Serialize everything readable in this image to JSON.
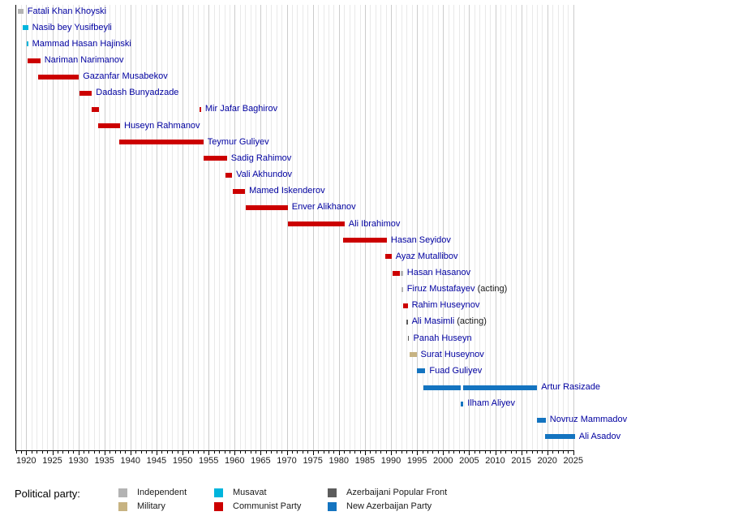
{
  "legend": {
    "title": "Political party:",
    "items": [
      {
        "label": "Independent",
        "color": "#b3b3b3"
      },
      {
        "label": "Military",
        "color": "#c7b382"
      },
      {
        "label": "Musavat",
        "color": "#00b5dd"
      },
      {
        "label": "Communist Party",
        "color": "#cc0000"
      },
      {
        "label": "Azerbaijani Popular Front",
        "color": "#5c5c5c"
      },
      {
        "label": "New Azerbaijan Party",
        "color": "#1474c0"
      }
    ]
  },
  "chart_data": {
    "type": "gantt",
    "x_range": [
      1918,
      2025.6
    ],
    "x_ticks": [
      "1920",
      "1925",
      "1930",
      "1935",
      "1940",
      "1945",
      "1950",
      "1955",
      "1960",
      "1965",
      "1970",
      "1975",
      "1980",
      "1985",
      "1990",
      "1995",
      "2000",
      "2005",
      "2010",
      "2015",
      "2020",
      "2025"
    ],
    "grid": "vertical-yearly",
    "legend_position": "bottom",
    "people": [
      {
        "name": "Fatali Khan Khoyski",
        "segments": [
          {
            "from": 1918.4,
            "to": 1919.45,
            "party": "Independent"
          }
        ]
      },
      {
        "name": "Nasib bey Yusifbeyli",
        "segments": [
          {
            "from": 1919.3,
            "to": 1920.35,
            "party": "Musavat"
          }
        ]
      },
      {
        "name": "Mammad Hasan Hajinski",
        "segments": [
          {
            "from": 1920.1,
            "to": 1920.35,
            "party": "Musavat"
          }
        ]
      },
      {
        "name": "Nariman Narimanov",
        "segments": [
          {
            "from": 1920.3,
            "to": 1922.7,
            "party": "Communist Party"
          }
        ]
      },
      {
        "name": "Gazanfar Musabekov",
        "segments": [
          {
            "from": 1922.3,
            "to": 1930.1,
            "party": "Communist Party"
          }
        ]
      },
      {
        "name": "Dadash Bunyadzade",
        "segments": [
          {
            "from": 1930.2,
            "to": 1932.6,
            "party": "Communist Party"
          }
        ]
      },
      {
        "name": "Mir Jafar Baghirov",
        "segments": [
          {
            "from": 1932.6,
            "to": 1934.0,
            "party": "Communist Party"
          },
          {
            "from": 1953.25,
            "to": 1953.55,
            "party": "Communist Party"
          }
        ]
      },
      {
        "name": "Huseyn Rahmanov",
        "segments": [
          {
            "from": 1933.8,
            "to": 1938.0,
            "party": "Communist Party"
          }
        ]
      },
      {
        "name": "Teymur Guliyev",
        "segments": [
          {
            "from": 1937.8,
            "to": 1954.0,
            "party": "Communist Party"
          }
        ]
      },
      {
        "name": "Sadig Rahimov",
        "segments": [
          {
            "from": 1954.0,
            "to": 1958.5,
            "party": "Communist Party"
          }
        ]
      },
      {
        "name": "Vali Akhundov",
        "segments": [
          {
            "from": 1958.2,
            "to": 1959.5,
            "party": "Communist Party"
          }
        ]
      },
      {
        "name": "Mamed Iskenderov",
        "segments": [
          {
            "from": 1959.6,
            "to": 1962.0,
            "party": "Communist Party"
          }
        ]
      },
      {
        "name": "Enver Alikhanov",
        "segments": [
          {
            "from": 1962.1,
            "to": 1970.2,
            "party": "Communist Party"
          }
        ]
      },
      {
        "name": "Ali Ibrahimov",
        "segments": [
          {
            "from": 1970.2,
            "to": 1981.1,
            "party": "Communist Party"
          }
        ]
      },
      {
        "name": "Hasan Seyidov",
        "segments": [
          {
            "from": 1980.8,
            "to": 1989.2,
            "party": "Communist Party"
          }
        ]
      },
      {
        "name": "Ayaz Mutallibov",
        "segments": [
          {
            "from": 1988.9,
            "to": 1990.1,
            "party": "Communist Party"
          }
        ]
      },
      {
        "name": "Hasan Hasanov",
        "segments": [
          {
            "from": 1990.3,
            "to": 1991.8,
            "party": "Communist Party"
          },
          {
            "from": 1991.8,
            "to": 1992.3,
            "party": "Independent"
          }
        ]
      },
      {
        "name": "Firuz Mustafayev",
        "suffix": " (acting)",
        "segments": [
          {
            "from": 1992.0,
            "to": 1992.3,
            "party": "Independent"
          }
        ]
      },
      {
        "name": "Rahim Huseynov",
        "segments": [
          {
            "from": 1992.35,
            "to": 1993.2,
            "party": "Communist Party"
          }
        ]
      },
      {
        "name": "Ali Masimli",
        "suffix": " (acting)",
        "segments": [
          {
            "from": 1992.95,
            "to": 1993.2,
            "party": "Azerbaijani Popular Front"
          }
        ]
      },
      {
        "name": "Panah Huseyn",
        "segments": [
          {
            "from": 1993.25,
            "to": 1993.5,
            "party": "Azerbaijani Popular Front"
          }
        ]
      },
      {
        "name": "Surat Huseynov",
        "segments": [
          {
            "from": 1993.5,
            "to": 1994.9,
            "party": "Military"
          }
        ]
      },
      {
        "name": "Fuad Guliyev",
        "segments": [
          {
            "from": 1994.9,
            "to": 1996.6,
            "party": "New Azerbaijan Party"
          }
        ]
      },
      {
        "name": "Artur Rasizade",
        "segments": [
          {
            "from": 1996.25,
            "to": 2003.45,
            "party": "New Azerbaijan Party"
          },
          {
            "from": 2003.8,
            "to": 2018.05,
            "party": "New Azerbaijan Party"
          }
        ]
      },
      {
        "name": "Ilham Aliyev",
        "segments": [
          {
            "from": 2003.45,
            "to": 2003.9,
            "party": "New Azerbaijan Party"
          }
        ]
      },
      {
        "name": "Novruz Mammadov",
        "segments": [
          {
            "from": 2018.05,
            "to": 2019.7,
            "party": "New Azerbaijan Party"
          }
        ]
      },
      {
        "name": "Ali Asadov",
        "segments": [
          {
            "from": 2019.6,
            "to": 2025.3,
            "party": "New Azerbaijan Party"
          }
        ]
      }
    ]
  }
}
